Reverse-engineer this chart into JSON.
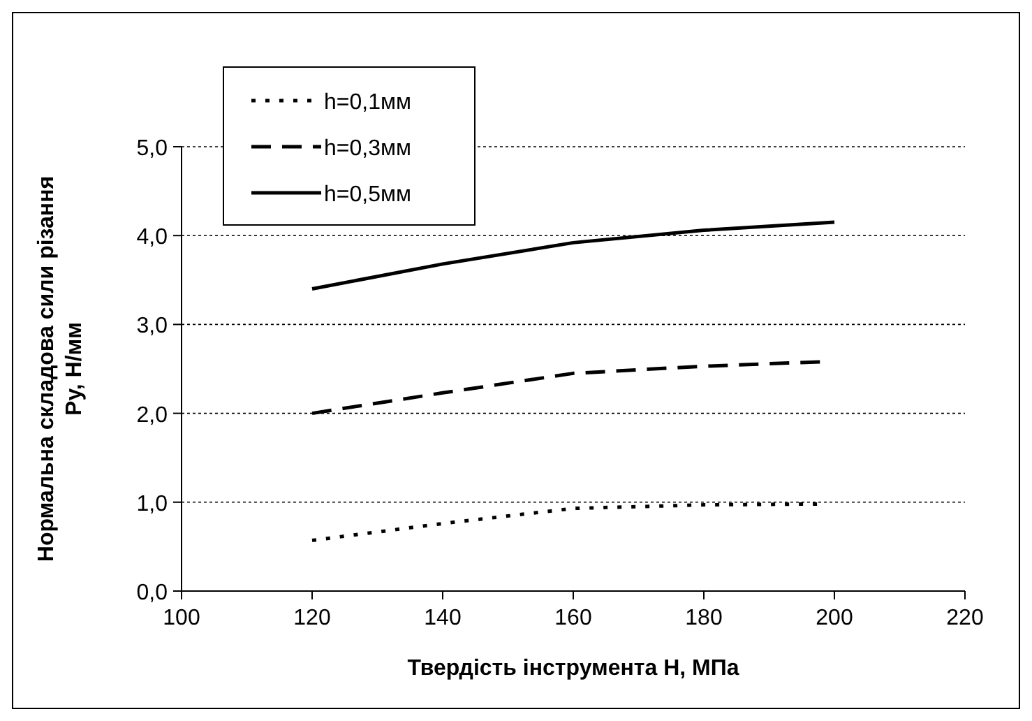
{
  "chart_data": {
    "type": "line",
    "xlabel": "Твердість інструмента Н,  МПа",
    "ylabel": "Нормальна складова сили різання\nPy, Н/мм",
    "xlim": [
      100,
      220
    ],
    "xticks": [
      100,
      120,
      140,
      160,
      180,
      200,
      220
    ],
    "ylim": [
      0,
      5
    ],
    "yticks": [
      {
        "value": 0,
        "label": "0,0"
      },
      {
        "value": 1,
        "label": "1,0"
      },
      {
        "value": 2,
        "label": "2,0"
      },
      {
        "value": 3,
        "label": "3,0"
      },
      {
        "value": 4,
        "label": "4,0"
      },
      {
        "value": 5,
        "label": "5,0"
      }
    ],
    "grid": "y",
    "legend": "top left",
    "series": [
      {
        "name": "h=0,1мм",
        "color": "#000000",
        "line_style": "dotted",
        "x": [
          120,
          140,
          160,
          180,
          198
        ],
        "values": [
          0.57,
          0.76,
          0.93,
          0.97,
          0.98
        ]
      },
      {
        "name": "h=0,3мм",
        "color": "#000000",
        "line_style": "dashed",
        "x": [
          120,
          140,
          160,
          180,
          198
        ],
        "values": [
          2.0,
          2.23,
          2.45,
          2.53,
          2.58
        ]
      },
      {
        "name": "h=0,5мм",
        "color": "#000000",
        "line_style": "solid",
        "x": [
          120,
          140,
          160,
          180,
          200
        ],
        "values": [
          3.4,
          3.68,
          3.92,
          4.06,
          4.15
        ]
      }
    ]
  }
}
